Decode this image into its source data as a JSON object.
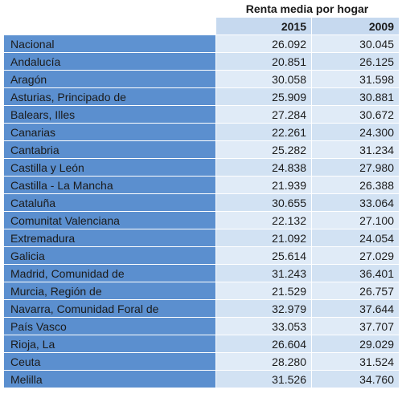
{
  "chart_data": {
    "type": "table",
    "title": "Renta media por hogar",
    "columns": [
      "2015",
      "2009"
    ],
    "rows": [
      {
        "region": "Nacional",
        "values": [
          "26.092",
          "30.045"
        ]
      },
      {
        "region": "Andalucía",
        "values": [
          "20.851",
          "26.125"
        ]
      },
      {
        "region": "Aragón",
        "values": [
          "30.058",
          "31.598"
        ]
      },
      {
        "region": "Asturias, Principado de",
        "values": [
          "25.909",
          "30.881"
        ]
      },
      {
        "region": "Balears, Illes",
        "values": [
          "27.284",
          "30.672"
        ]
      },
      {
        "region": "Canarias",
        "values": [
          "22.261",
          "24.300"
        ]
      },
      {
        "region": "Cantabria",
        "values": [
          "25.282",
          "31.234"
        ]
      },
      {
        "region": "Castilla y León",
        "values": [
          "24.838",
          "27.980"
        ]
      },
      {
        "region": "Castilla - La Mancha",
        "values": [
          "21.939",
          "26.388"
        ]
      },
      {
        "region": "Cataluña",
        "values": [
          "30.655",
          "33.064"
        ]
      },
      {
        "region": "Comunitat Valenciana",
        "values": [
          "22.132",
          "27.100"
        ]
      },
      {
        "region": "Extremadura",
        "values": [
          "21.092",
          "24.054"
        ]
      },
      {
        "region": "Galicia",
        "values": [
          "25.614",
          "27.029"
        ]
      },
      {
        "region": "Madrid, Comunidad de",
        "values": [
          "31.243",
          "36.401"
        ]
      },
      {
        "region": "Murcia, Región de",
        "values": [
          "21.529",
          "26.757"
        ]
      },
      {
        "region": "Navarra, Comunidad Foral de",
        "values": [
          "32.979",
          "37.644"
        ]
      },
      {
        "region": "País Vasco",
        "values": [
          "33.053",
          "37.707"
        ]
      },
      {
        "region": "Rioja, La",
        "values": [
          "26.604",
          "29.029"
        ]
      },
      {
        "region": "Ceuta",
        "values": [
          "28.280",
          "31.524"
        ]
      },
      {
        "region": "Melilla",
        "values": [
          "31.526",
          "34.760"
        ]
      }
    ]
  },
  "colors": {
    "name_cell": "#5b8fcf",
    "header_cell": "#c6d9ef",
    "value_cell_odd": "#e0ebf7",
    "value_cell_even": "#d2e2f3"
  }
}
